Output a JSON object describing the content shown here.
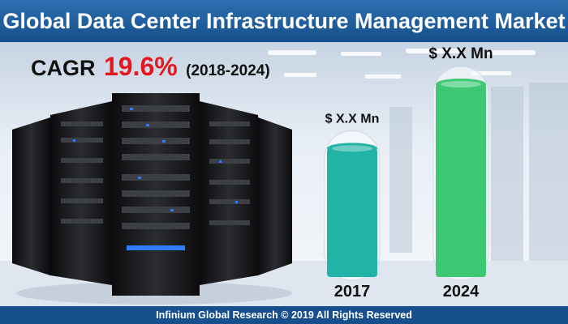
{
  "header": {
    "title": "Global Data Center Infrastructure Management Market"
  },
  "cagr": {
    "label": "CAGR",
    "value": "19.6%",
    "period": "(2018-2024)"
  },
  "footer": {
    "text": "Infinium Global Research © 2019 All Rights Reserved"
  },
  "colors": {
    "header_bg": "#1f5f9f",
    "cagr_value": "#e3171d",
    "bar_2017": "#20b3a6",
    "bar_2024": "#3ec873"
  },
  "chart_data": {
    "type": "bar",
    "categories": [
      "2017",
      "2024"
    ],
    "values": [
      1.0,
      1.5
    ],
    "value_labels": [
      "$ X.X Mn",
      "$ X.X Mn"
    ],
    "title": "",
    "xlabel": "",
    "ylabel": "",
    "ylim": [
      0,
      1.5
    ],
    "grid": false,
    "legend": "none"
  }
}
